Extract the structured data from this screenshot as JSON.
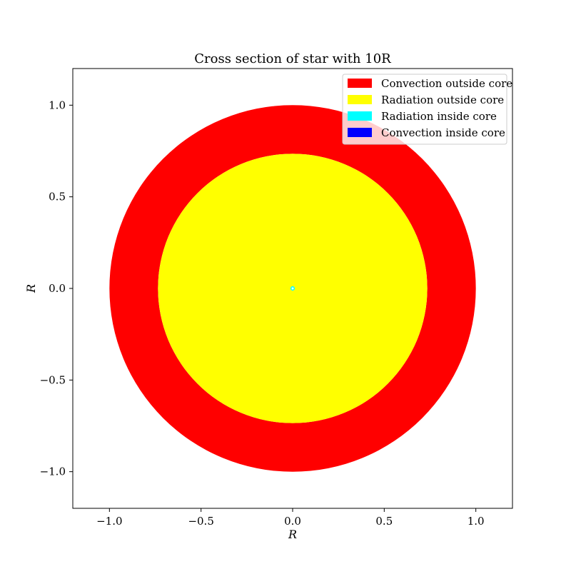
{
  "chart_data": {
    "type": "area",
    "title": "Cross section of star with 10R",
    "xlabel": "R",
    "ylabel": "R",
    "xlim": [
      -1.2,
      1.2
    ],
    "ylim": [
      -1.2,
      1.2
    ],
    "xticks": [
      -1.0,
      -0.5,
      0.0,
      0.5,
      1.0
    ],
    "yticks": [
      -1.0,
      -0.5,
      0.0,
      0.5,
      1.0
    ],
    "xtick_labels": [
      "−1.0",
      "−0.5",
      "0.0",
      "0.5",
      "1.0"
    ],
    "ytick_labels": [
      "−1.0",
      "−0.5",
      "0.0",
      "0.5",
      "1.0"
    ],
    "grid": false,
    "legend_position": "top-right",
    "series": [
      {
        "name": "Convection outside core",
        "color": "#ff0000",
        "outer_radius": 1.0,
        "inner_radius": 0.735
      },
      {
        "name": "Radiation outside core",
        "color": "#ffff00",
        "outer_radius": 0.735,
        "inner_radius": 0.012
      },
      {
        "name": "Radiation inside core",
        "color": "#00ffff",
        "outer_radius": 0.012,
        "inner_radius": 0.006
      },
      {
        "name": "Convection inside core",
        "color": "#0000ff",
        "outer_radius": 0.0,
        "inner_radius": 0.0
      }
    ]
  }
}
